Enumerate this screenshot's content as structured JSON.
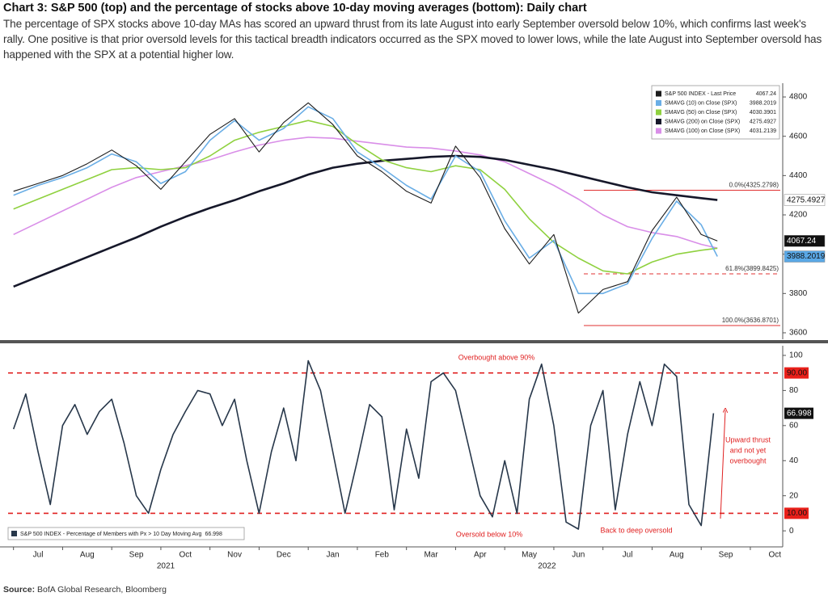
{
  "header": {
    "title": "Chart 3: S&P 500 (top) and the percentage of stocks above 10-day moving averages (bottom): Daily chart",
    "description": "The percentage of SPX stocks above 10-day MAs has scored an upward thrust from its late August into early September oversold below 10%, which confirms last week's rally. One positive is that prior oversold levels for this tactical breadth indicators occurred as the SPX moved to lower lows, while the late August into September oversold has happened with the SPX at a potential higher low."
  },
  "footer": {
    "source_label": "Source:",
    "source": "BofA Global Research, Bloomberg"
  },
  "chart_data": [
    {
      "type": "line",
      "x": [
        0,
        0.5,
        1,
        1.5,
        2,
        2.5,
        3,
        3.5,
        4,
        4.5,
        5,
        5.5,
        6,
        6.5,
        7,
        7.5,
        8,
        8.5,
        9,
        9.5,
        10,
        10.5,
        11,
        11.5,
        12,
        12.5,
        13,
        13.5,
        14,
        14.33
      ],
      "xlim": [
        -0.11,
        15.61
      ],
      "ylim": [
        3567,
        4870
      ],
      "yticks": [
        3600,
        3800,
        4000,
        4200,
        4400,
        4600,
        4800
      ],
      "grid": false,
      "legend": "top-right",
      "series": [
        {
          "name": "S&P 500 INDEX - Last Price",
          "color": "#1c1c1c",
          "values": [
            4320,
            4360,
            4400,
            4460,
            4530,
            4450,
            4330,
            4470,
            4610,
            4690,
            4520,
            4670,
            4770,
            4660,
            4500,
            4420,
            4320,
            4260,
            4550,
            4390,
            4130,
            3950,
            4100,
            3700,
            3820,
            3860,
            4120,
            4290,
            4100,
            4067.24
          ]
        },
        {
          "name": "SMAVG (10)  on Close (SPX)",
          "color": "#6aaee6",
          "values": [
            4300,
            4350,
            4390,
            4440,
            4510,
            4470,
            4360,
            4420,
            4580,
            4680,
            4580,
            4640,
            4750,
            4690,
            4520,
            4440,
            4350,
            4280,
            4500,
            4420,
            4170,
            3980,
            4070,
            3800,
            3800,
            3850,
            4080,
            4270,
            4150,
            3988.2019
          ]
        },
        {
          "name": "SMAVG (50)  on Close (SPX)",
          "color": "#8fd13f",
          "values": [
            4230,
            4280,
            4330,
            4380,
            4430,
            4440,
            4430,
            4440,
            4500,
            4580,
            4620,
            4650,
            4680,
            4650,
            4560,
            4480,
            4440,
            4420,
            4450,
            4430,
            4330,
            4180,
            4060,
            3980,
            3915,
            3900,
            3960,
            4000,
            4020,
            4030.3901
          ]
        },
        {
          "name": "SMAVG (200)  on Close (SPX)",
          "color": "#16182a",
          "values": [
            3835,
            3885,
            3935,
            3985,
            4035,
            4085,
            4140,
            4190,
            4235,
            4275,
            4320,
            4360,
            4405,
            4440,
            4460,
            4475,
            4485,
            4495,
            4500,
            4495,
            4480,
            4455,
            4430,
            4400,
            4370,
            4340,
            4315,
            4300,
            4285,
            4275.4927
          ]
        },
        {
          "name": "SMAVG (100)  on Close (SPX)",
          "color": "#d98ee8",
          "values": [
            4100,
            4160,
            4220,
            4280,
            4340,
            4390,
            4420,
            4450,
            4480,
            4520,
            4555,
            4580,
            4595,
            4590,
            4575,
            4560,
            4545,
            4540,
            4525,
            4505,
            4470,
            4410,
            4350,
            4280,
            4200,
            4140,
            4110,
            4090,
            4050,
            4031.2139
          ]
        }
      ],
      "levels": [
        {
          "value": 4325.2798,
          "label": "0.0%(4325.2798)"
        },
        {
          "value": 3899.8425,
          "label": "61.8%(3899.8425)"
        },
        {
          "value": 3636.8701,
          "label": "100.0%(3636.8701)"
        }
      ]
    },
    {
      "type": "line",
      "x": [
        0,
        0.25,
        0.5,
        0.75,
        1,
        1.25,
        1.5,
        1.75,
        2,
        2.25,
        2.5,
        2.75,
        3,
        3.25,
        3.5,
        3.75,
        4,
        4.25,
        4.5,
        4.75,
        5,
        5.25,
        5.5,
        5.75,
        6,
        6.25,
        6.5,
        6.75,
        7,
        7.25,
        7.5,
        7.75,
        8,
        8.25,
        8.5,
        8.75,
        9,
        9.25,
        9.5,
        9.75,
        10,
        10.25,
        10.5,
        10.75,
        11,
        11.25,
        11.5,
        11.75,
        12,
        12.25,
        12.5,
        12.75,
        13,
        13.25,
        13.5,
        13.75,
        14,
        14.25
      ],
      "xlim": [
        -0.11,
        15.61
      ],
      "ylim": [
        -5,
        105.5
      ],
      "yticks": [
        0,
        20,
        40,
        60,
        80,
        100
      ],
      "xticks": [
        {
          "value": 0.5,
          "label": "Jul"
        },
        {
          "value": 1.5,
          "label": "Aug"
        },
        {
          "value": 2.5,
          "label": "Sep"
        },
        {
          "value": 3.5,
          "label": "Oct"
        },
        {
          "value": 4.5,
          "label": "Nov"
        },
        {
          "value": 5.5,
          "label": "Dec"
        },
        {
          "value": 6.5,
          "label": "Jan"
        },
        {
          "value": 7.5,
          "label": "Feb"
        },
        {
          "value": 8.5,
          "label": "Mar"
        },
        {
          "value": 9.5,
          "label": "Apr"
        },
        {
          "value": 10.5,
          "label": "May"
        },
        {
          "value": 11.5,
          "label": "Jun"
        },
        {
          "value": 12.5,
          "label": "Jul"
        },
        {
          "value": 13.5,
          "label": "Aug"
        },
        {
          "value": 14.5,
          "label": "Sep"
        },
        {
          "value": 15.5,
          "label": "Oct"
        }
      ],
      "year_labels": [
        {
          "value": 3.1,
          "label": "2021"
        },
        {
          "value": 10.86,
          "label": "2022"
        }
      ],
      "grid": false,
      "legend": "bottom-left",
      "series": [
        {
          "name": "S&P 500 INDEX - Percentage of Members with Px > 10 Day Moving Avg",
          "color": "#27374a",
          "values": [
            58,
            78,
            45,
            15,
            60,
            72,
            55,
            68,
            75,
            50,
            20,
            10,
            35,
            55,
            68,
            80,
            78,
            60,
            75,
            40,
            10,
            45,
            70,
            40,
            97,
            80,
            45,
            10,
            40,
            72,
            65,
            12,
            58,
            30,
            85,
            90,
            80,
            50,
            20,
            8,
            40,
            10,
            75,
            95,
            60,
            5,
            1,
            60,
            80,
            12,
            55,
            85,
            60,
            95,
            88,
            15,
            3,
            66.998
          ]
        }
      ],
      "ref_lines": [
        {
          "value": 90,
          "label": "90.00"
        },
        {
          "value": 10,
          "label": "10.00"
        }
      ],
      "annotations": [
        {
          "text": "Overbought above 90%"
        },
        {
          "text": "Oversold below 10%"
        },
        {
          "text": "Back to deep oversold"
        },
        {
          "lines": [
            "Upward thrust",
            "and not yet",
            "overbought"
          ]
        }
      ]
    }
  ]
}
